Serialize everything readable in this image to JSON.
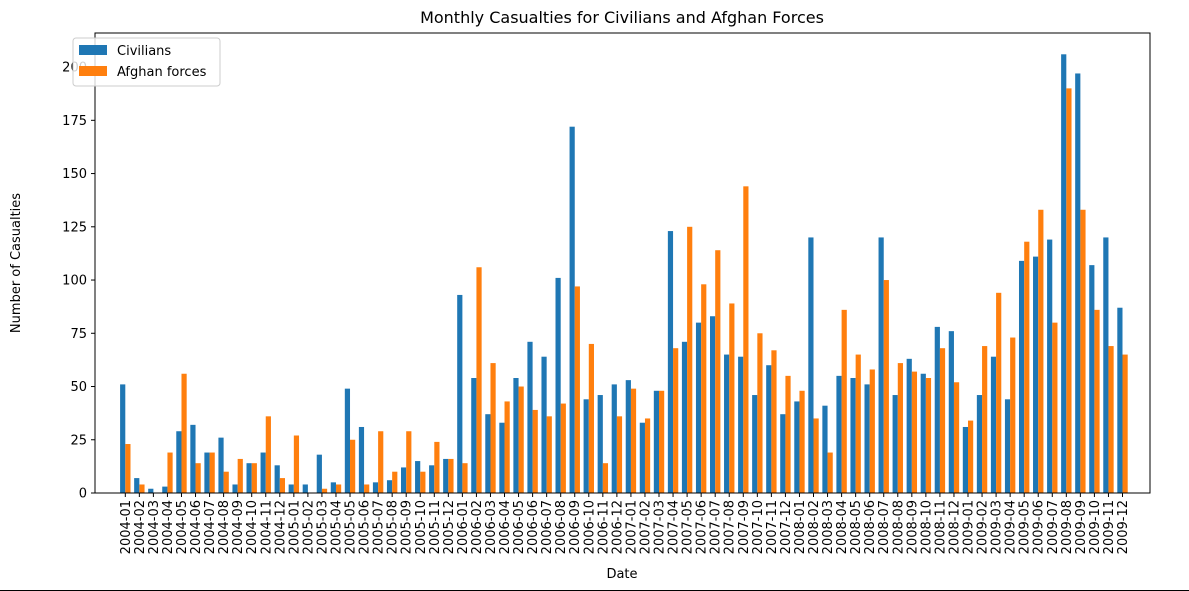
{
  "chart_data": {
    "type": "bar",
    "title": "Monthly Casualties for Civilians and Afghan Forces",
    "xlabel": "Date",
    "ylabel": "Number of Casualties",
    "ylim": [
      0,
      216
    ],
    "yticks": [
      0,
      25,
      50,
      75,
      100,
      125,
      150,
      175,
      200
    ],
    "grid": false,
    "legend_position": "top-left",
    "categories": [
      "2004-01",
      "2004-02",
      "2004-03",
      "2004-04",
      "2004-05",
      "2004-06",
      "2004-07",
      "2004-08",
      "2004-09",
      "2004-10",
      "2004-11",
      "2004-12",
      "2005-01",
      "2005-02",
      "2005-03",
      "2005-04",
      "2005-05",
      "2005-06",
      "2005-07",
      "2005-08",
      "2005-09",
      "2005-10",
      "2005-11",
      "2005-12",
      "2006-01",
      "2006-02",
      "2006-03",
      "2006-04",
      "2006-05",
      "2006-06",
      "2006-07",
      "2006-08",
      "2006-09",
      "2006-10",
      "2006-11",
      "2006-12",
      "2007-01",
      "2007-02",
      "2007-03",
      "2007-04",
      "2007-05",
      "2007-06",
      "2007-07",
      "2007-08",
      "2007-09",
      "2007-10",
      "2007-11",
      "2007-12",
      "2008-01",
      "2008-02",
      "2008-03",
      "2008-04",
      "2008-05",
      "2008-06",
      "2008-07",
      "2008-08",
      "2008-09",
      "2008-10",
      "2008-11",
      "2008-12",
      "2009-01",
      "2009-02",
      "2009-03",
      "2009-04",
      "2009-05",
      "2009-06",
      "2009-07",
      "2009-08",
      "2009-09",
      "2009-10",
      "2009-11",
      "2009-12"
    ],
    "series": [
      {
        "name": "Civilians",
        "color": "#1f77b4",
        "values": [
          51,
          7,
          2,
          3,
          29,
          32,
          19,
          26,
          4,
          14,
          19,
          13,
          4,
          4,
          18,
          5,
          49,
          31,
          5,
          6,
          12,
          15,
          13,
          16,
          93,
          54,
          37,
          33,
          54,
          71,
          64,
          101,
          172,
          44,
          46,
          51,
          53,
          33,
          48,
          123,
          71,
          80,
          83,
          65,
          64,
          46,
          60,
          37,
          43,
          120,
          41,
          55,
          54,
          51,
          120,
          46,
          63,
          56,
          78,
          76,
          31,
          46,
          64,
          44,
          109,
          111,
          119,
          206,
          197,
          107,
          120,
          87
        ]
      },
      {
        "name": "Afghan forces",
        "color": "#ff7f0e",
        "values": [
          23,
          4,
          0,
          19,
          56,
          14,
          19,
          10,
          16,
          14,
          36,
          7,
          27,
          0,
          2,
          4,
          25,
          4,
          29,
          10,
          29,
          10,
          24,
          16,
          14,
          106,
          61,
          43,
          50,
          39,
          36,
          42,
          97,
          70,
          14,
          36,
          49,
          35,
          48,
          68,
          125,
          98,
          114,
          89,
          144,
          75,
          67,
          55,
          48,
          35,
          19,
          86,
          65,
          58,
          100,
          61,
          57,
          54,
          68,
          52,
          34,
          69,
          94,
          73,
          118,
          133,
          80,
          190,
          133,
          86,
          69,
          65
        ]
      }
    ]
  }
}
